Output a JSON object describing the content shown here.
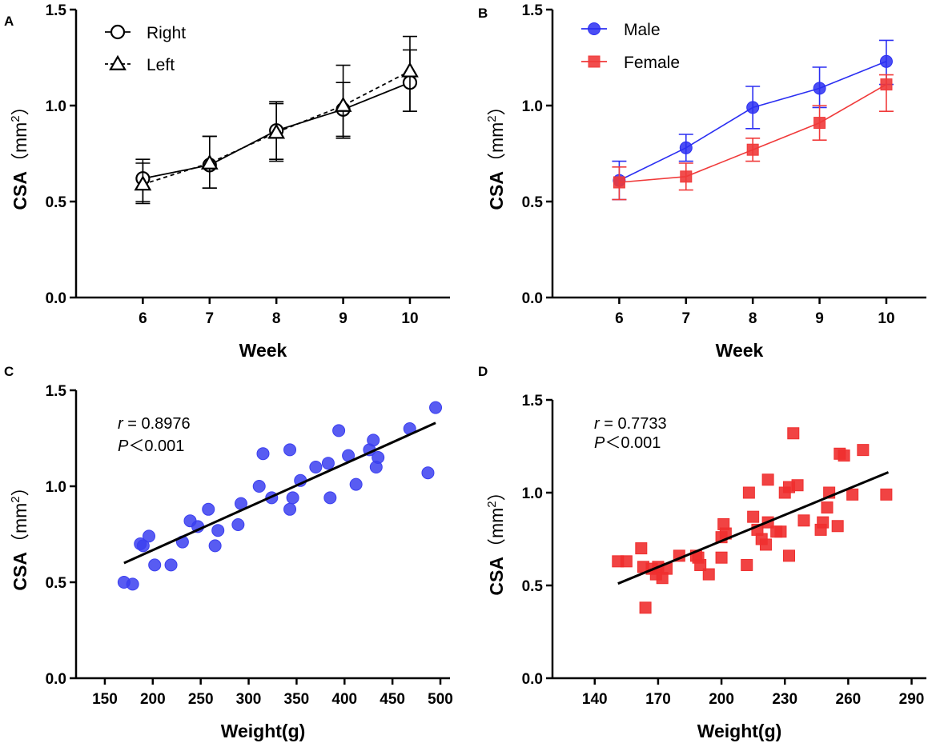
{
  "chart_data": [
    {
      "panel": "A",
      "type": "line",
      "xlabel": "Week",
      "ylabel": "CSA",
      "ylabel_unit": "（mm",
      "ylabel_sup": "2",
      "ylabel_close": "）",
      "x": [
        6,
        7,
        8,
        9,
        10
      ],
      "xticks": [
        "6",
        "7",
        "8",
        "9",
        "10"
      ],
      "xlim": [
        5,
        10.6
      ],
      "ylim": [
        0,
        1.5
      ],
      "yticks": [
        "0.0",
        "0.5",
        "1.0",
        "1.5"
      ],
      "series": [
        {
          "name": "Right",
          "marker": "circle",
          "color": "#000000",
          "dashed": false,
          "values": [
            0.62,
            0.69,
            0.87,
            0.98,
            1.12
          ],
          "err_low": [
            0.5,
            0.57,
            0.72,
            0.84,
            0.97
          ],
          "err_high": [
            0.72,
            0.84,
            1.01,
            1.12,
            1.29
          ]
        },
        {
          "name": "Left",
          "marker": "triangle",
          "color": "#000000",
          "dashed": true,
          "values": [
            0.59,
            0.7,
            0.86,
            1.0,
            1.18
          ],
          "err_low": [
            0.49,
            0.57,
            0.71,
            0.83,
            0.97
          ],
          "err_high": [
            0.7,
            0.84,
            1.02,
            1.21,
            1.36
          ]
        }
      ]
    },
    {
      "panel": "B",
      "type": "line",
      "xlabel": "Week",
      "ylabel": "CSA",
      "ylabel_unit": "（mm",
      "ylabel_sup": "2",
      "ylabel_close": "）",
      "x": [
        6,
        7,
        8,
        9,
        10
      ],
      "xticks": [
        "6",
        "7",
        "8",
        "9",
        "10"
      ],
      "xlim": [
        5,
        10.6
      ],
      "ylim": [
        0,
        1.5
      ],
      "yticks": [
        "0.0",
        "0.5",
        "1.0",
        "1.5"
      ],
      "series": [
        {
          "name": "Male",
          "marker": "circle",
          "color": "#2b2ff2",
          "values": [
            0.61,
            0.78,
            0.99,
            1.09,
            1.23
          ],
          "err_low": [
            0.51,
            0.71,
            0.88,
            0.99,
            1.11
          ],
          "err_high": [
            0.71,
            0.85,
            1.1,
            1.2,
            1.34
          ]
        },
        {
          "name": "Female",
          "marker": "square",
          "color": "#f03a3a",
          "values": [
            0.6,
            0.63,
            0.77,
            0.91,
            1.11
          ],
          "err_low": [
            0.51,
            0.56,
            0.71,
            0.82,
            0.97
          ],
          "err_high": [
            0.68,
            0.7,
            0.83,
            1.0,
            1.16
          ]
        }
      ]
    },
    {
      "panel": "C",
      "type": "scatter",
      "xlabel": "Weight(g)",
      "ylabel": "CSA",
      "ylabel_unit": "（mm",
      "ylabel_sup": "2",
      "ylabel_close": "）",
      "xlim": [
        120,
        510
      ],
      "xticks": [
        "150",
        "200",
        "250",
        "300",
        "350",
        "400",
        "450",
        "500"
      ],
      "ylim": [
        0,
        1.5
      ],
      "yticks": [
        "0.0",
        "0.5",
        "1.0",
        "1.5"
      ],
      "marker": "circle",
      "color": "#3b3ff0",
      "r_label": "r",
      "r_value": " = 0.8976",
      "p_label": "P",
      "p_value": "＜0.001",
      "fit": {
        "x0": 170,
        "y0": 0.6,
        "x1": 495,
        "y1": 1.33
      },
      "points": [
        [
          170,
          0.5
        ],
        [
          179,
          0.49
        ],
        [
          187,
          0.7
        ],
        [
          190,
          0.69
        ],
        [
          196,
          0.74
        ],
        [
          202,
          0.59
        ],
        [
          219,
          0.59
        ],
        [
          231,
          0.71
        ],
        [
          239,
          0.82
        ],
        [
          247,
          0.79
        ],
        [
          258,
          0.88
        ],
        [
          265,
          0.69
        ],
        [
          268,
          0.77
        ],
        [
          289,
          0.8
        ],
        [
          292,
          0.91
        ],
        [
          311,
          1.0
        ],
        [
          315,
          1.17
        ],
        [
          324,
          0.94
        ],
        [
          343,
          1.19
        ],
        [
          343,
          0.88
        ],
        [
          346,
          0.94
        ],
        [
          354,
          1.03
        ],
        [
          370,
          1.1
        ],
        [
          383,
          1.12
        ],
        [
          385,
          0.94
        ],
        [
          394,
          1.29
        ],
        [
          404,
          1.16
        ],
        [
          412,
          1.01
        ],
        [
          426,
          1.19
        ],
        [
          430,
          1.24
        ],
        [
          433,
          1.1
        ],
        [
          435,
          1.15
        ],
        [
          468,
          1.3
        ],
        [
          487,
          1.07
        ],
        [
          495,
          1.41
        ]
      ]
    },
    {
      "panel": "D",
      "type": "scatter",
      "xlabel": "Weight(g)",
      "ylabel": "CSA",
      "ylabel_unit": "（mm",
      "ylabel_sup": "2",
      "ylabel_close": "）",
      "xlim": [
        120,
        297
      ],
      "xticks": [
        "140",
        "170",
        "200",
        "230",
        "260",
        "290"
      ],
      "ylim": [
        0,
        1.5
      ],
      "yticks": [
        "0.0",
        "0.5",
        "1.0",
        "1.5"
      ],
      "marker": "square",
      "color": "#ef2f2f",
      "r_label": "r",
      "r_value": " = 0.7733",
      "p_label": "P",
      "p_value": "＜0.001",
      "fit": {
        "x0": 151,
        "y0": 0.51,
        "x1": 279,
        "y1": 1.11
      },
      "points": [
        [
          151,
          0.63
        ],
        [
          155,
          0.63
        ],
        [
          162,
          0.7
        ],
        [
          163,
          0.6
        ],
        [
          164,
          0.38
        ],
        [
          167,
          0.59
        ],
        [
          169,
          0.56
        ],
        [
          170,
          0.6
        ],
        [
          172,
          0.54
        ],
        [
          174,
          0.59
        ],
        [
          180,
          0.66
        ],
        [
          188,
          0.66
        ],
        [
          189,
          0.65
        ],
        [
          190,
          0.61
        ],
        [
          194,
          0.56
        ],
        [
          200,
          0.65
        ],
        [
          200,
          0.76
        ],
        [
          201,
          0.83
        ],
        [
          202,
          0.78
        ],
        [
          212,
          0.61
        ],
        [
          213,
          1.0
        ],
        [
          215,
          0.87
        ],
        [
          217,
          0.8
        ],
        [
          219,
          0.75
        ],
        [
          221,
          0.72
        ],
        [
          222,
          0.84
        ],
        [
          222,
          1.07
        ],
        [
          226,
          0.79
        ],
        [
          228,
          0.79
        ],
        [
          230,
          1.0
        ],
        [
          232,
          1.03
        ],
        [
          232,
          0.66
        ],
        [
          234,
          1.32
        ],
        [
          236,
          1.04
        ],
        [
          239,
          0.85
        ],
        [
          247,
          0.8
        ],
        [
          248,
          0.84
        ],
        [
          250,
          0.92
        ],
        [
          251,
          1.0
        ],
        [
          255,
          0.82
        ],
        [
          256,
          1.21
        ],
        [
          258,
          1.2
        ],
        [
          262,
          0.99
        ],
        [
          267,
          1.23
        ],
        [
          278,
          0.99
        ]
      ]
    }
  ]
}
